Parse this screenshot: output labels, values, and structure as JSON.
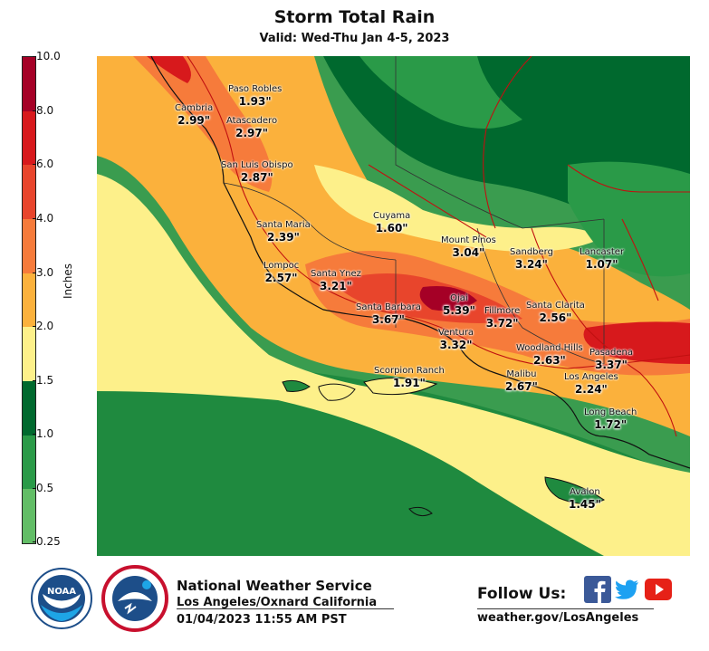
{
  "title": "Storm Total Rain",
  "subtitle": "Valid: Wed-Thu Jan 4-5, 2023",
  "colorbar": {
    "label": "Inches",
    "ticks": [
      "10.0",
      "8.0",
      "6.0",
      "4.0",
      "3.0",
      "2.0",
      "1.5",
      "1.0",
      "0.5",
      "0.25"
    ],
    "colors": [
      "#a50026",
      "#d7191c",
      "#e8452c",
      "#f67b3b",
      "#fbb13c",
      "#fdf08a",
      "#00692e",
      "#2a9a48",
      "#62bd66"
    ]
  },
  "cities": [
    {
      "name": "Paso Robles",
      "amount": "1.93\""
    },
    {
      "name": "Cambria",
      "amount": "2.99\""
    },
    {
      "name": "Atascadero",
      "amount": "2.97\""
    },
    {
      "name": "San Luis Obispo",
      "amount": "2.87\""
    },
    {
      "name": "Santa Maria",
      "amount": "2.39\""
    },
    {
      "name": "Cuyama",
      "amount": "1.60\""
    },
    {
      "name": "Mount Pinos",
      "amount": "3.04\""
    },
    {
      "name": "Sandberg",
      "amount": "3.24\""
    },
    {
      "name": "Lancaster",
      "amount": "1.07\""
    },
    {
      "name": "Lompoc",
      "amount": "2.57\""
    },
    {
      "name": "Santa Ynez",
      "amount": "3.21\""
    },
    {
      "name": "Santa Barbara",
      "amount": "3.67\""
    },
    {
      "name": "Ojai",
      "amount": "5.39\""
    },
    {
      "name": "Fillmore",
      "amount": "3.72\""
    },
    {
      "name": "Santa Clarita",
      "amount": "2.56\""
    },
    {
      "name": "Ventura",
      "amount": "3.32\""
    },
    {
      "name": "Woodland Hills",
      "amount": "2.63\""
    },
    {
      "name": "Pasadena",
      "amount": "3.37\""
    },
    {
      "name": "Scorpion Ranch",
      "amount": "1.91\""
    },
    {
      "name": "Malibu",
      "amount": "2.67\""
    },
    {
      "name": "Los Angeles",
      "amount": "2.24\""
    },
    {
      "name": "Long Beach",
      "amount": "1.72\""
    },
    {
      "name": "Avalon",
      "amount": "1.45\""
    }
  ],
  "footer": {
    "org_line1": "National Weather Service",
    "org_line2": "Los Angeles/Oxnard California",
    "timestamp": "01/04/2023 11:55 AM PST",
    "follow_label": "Follow Us:",
    "website": "weather.gov/LosAngeles",
    "logos": [
      "noaa-logo",
      "nws-logo"
    ],
    "social_icons": [
      "facebook-icon",
      "twitter-icon",
      "youtube-icon"
    ]
  }
}
